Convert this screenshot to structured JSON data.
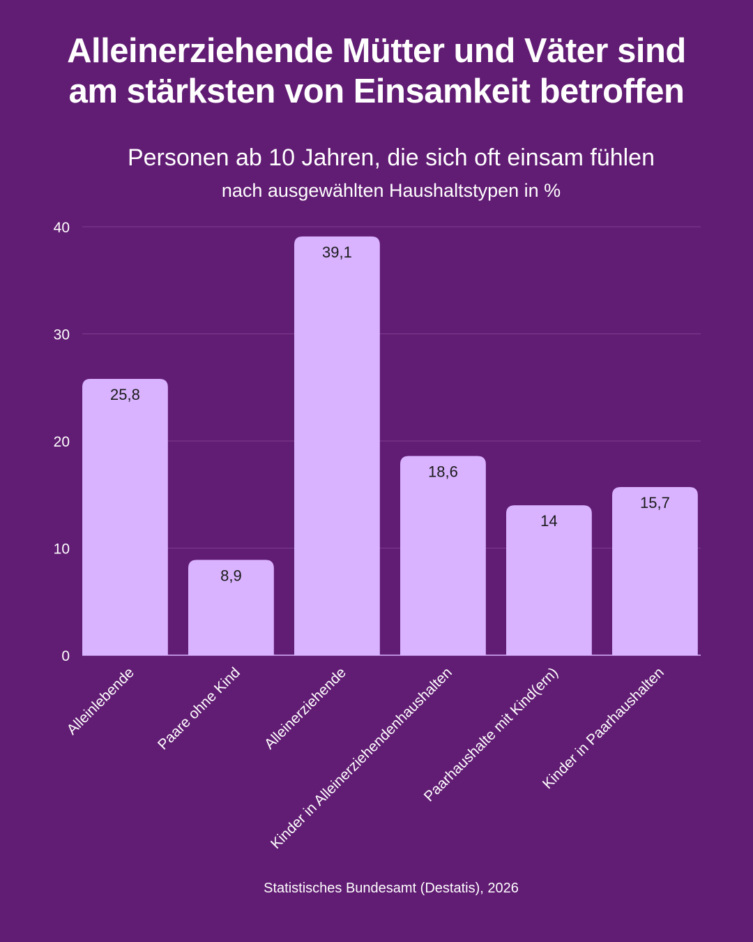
{
  "header": {
    "title_line1": "Alleinerziehende Mütter und Väter sind",
    "title_line2": "am stärksten von Einsamkeit betroffen",
    "subtitle": "Personen ab 10 Jahren, die sich oft einsam fühlen",
    "subsubtitle": "nach ausgewählten Haushaltstypen in %"
  },
  "footer": {
    "source": "Statistisches Bundesamt (Destatis), 2026"
  },
  "colors": {
    "background": "#611C73",
    "bar": "#D9B3FF",
    "text": "#FFFFFF",
    "value_label": "#1A1A1A",
    "grid": "#7E3E90"
  },
  "chart_data": {
    "type": "bar",
    "categories": [
      "Alleinlebende",
      "Paare ohne Kind",
      "Alleinerziehende",
      "Kinder in Alleinerziehendenhaushalten",
      "Paarhaushalte mit Kind(ern)",
      "Kinder in Paarhaushalten"
    ],
    "values": [
      25.8,
      8.9,
      39.1,
      18.6,
      14,
      15.7
    ],
    "value_labels": [
      "25,8",
      "8,9",
      "39,1",
      "18,6",
      "14",
      "15,7"
    ],
    "ylim": [
      0,
      40
    ],
    "yticks": [
      0,
      10,
      20,
      30,
      40
    ],
    "ytick_labels": [
      "0",
      "10",
      "20",
      "30",
      "40"
    ],
    "grid": true,
    "legend": "none"
  }
}
